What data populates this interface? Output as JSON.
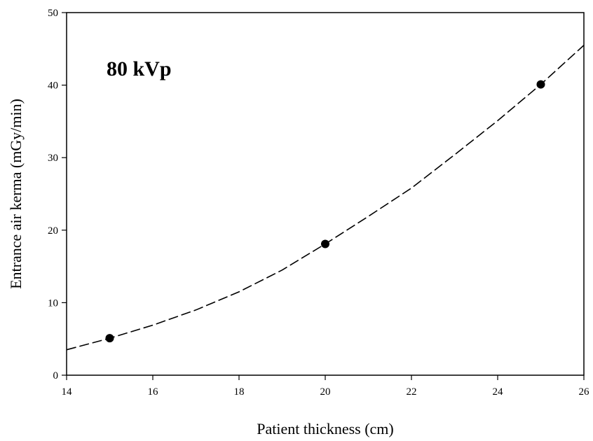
{
  "chart_data": {
    "type": "scatter",
    "xlabel": "Patient thickness (cm)",
    "ylabel": "Entrance air kerma (mGy/min)",
    "annotation": "80 kVp",
    "xlim": [
      14,
      26
    ],
    "ylim": [
      0,
      50
    ],
    "xticks": [
      14,
      16,
      18,
      20,
      22,
      24,
      26
    ],
    "yticks": [
      0,
      10,
      20,
      30,
      40,
      50
    ],
    "grid": false,
    "points": [
      {
        "x": 15,
        "y": 5.1
      },
      {
        "x": 20,
        "y": 18.1
      },
      {
        "x": 25,
        "y": 40.1
      }
    ],
    "fit_curve": {
      "style": "dashed",
      "x": [
        14,
        15,
        16,
        17,
        18,
        19,
        20,
        21,
        22,
        23,
        24,
        25,
        26
      ],
      "y": [
        3.5,
        5.1,
        6.9,
        9.0,
        11.5,
        14.5,
        18.1,
        21.9,
        25.8,
        30.4,
        35.1,
        40.1,
        45.5
      ]
    }
  }
}
